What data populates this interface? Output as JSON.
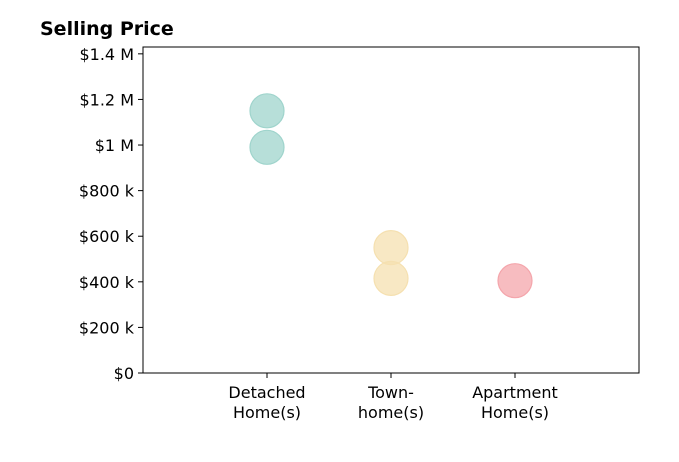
{
  "chart_data": {
    "type": "scatter",
    "title": "Selling Price",
    "xlabel": "",
    "ylabel": "",
    "categories": [
      [
        "Detached",
        "Home(s)"
      ],
      [
        "Town-",
        "home(s)"
      ],
      [
        "Apartment",
        "Home(s)"
      ]
    ],
    "xlim": [
      0,
      4
    ],
    "ylim": [
      0,
      1430000
    ],
    "y_ticks": [
      0,
      200000,
      400000,
      600000,
      800000,
      1000000,
      1200000,
      1400000
    ],
    "y_tick_labels": [
      "$0",
      "$200 k",
      "$400 k",
      "$600 k",
      "$800 k",
      "$1 M",
      "$1.2 M",
      "$1.4 M"
    ],
    "grid": false,
    "points": [
      {
        "category": 1,
        "value": 1150000,
        "color": "#9fd4cc"
      },
      {
        "category": 1,
        "value": 990000,
        "color": "#9fd4cc"
      },
      {
        "category": 2,
        "value": 550000,
        "color": "#f5e0b0"
      },
      {
        "category": 2,
        "value": 415000,
        "color": "#f5e0b0"
      },
      {
        "category": 3,
        "value": 405000,
        "color": "#f4a5ab"
      }
    ]
  }
}
